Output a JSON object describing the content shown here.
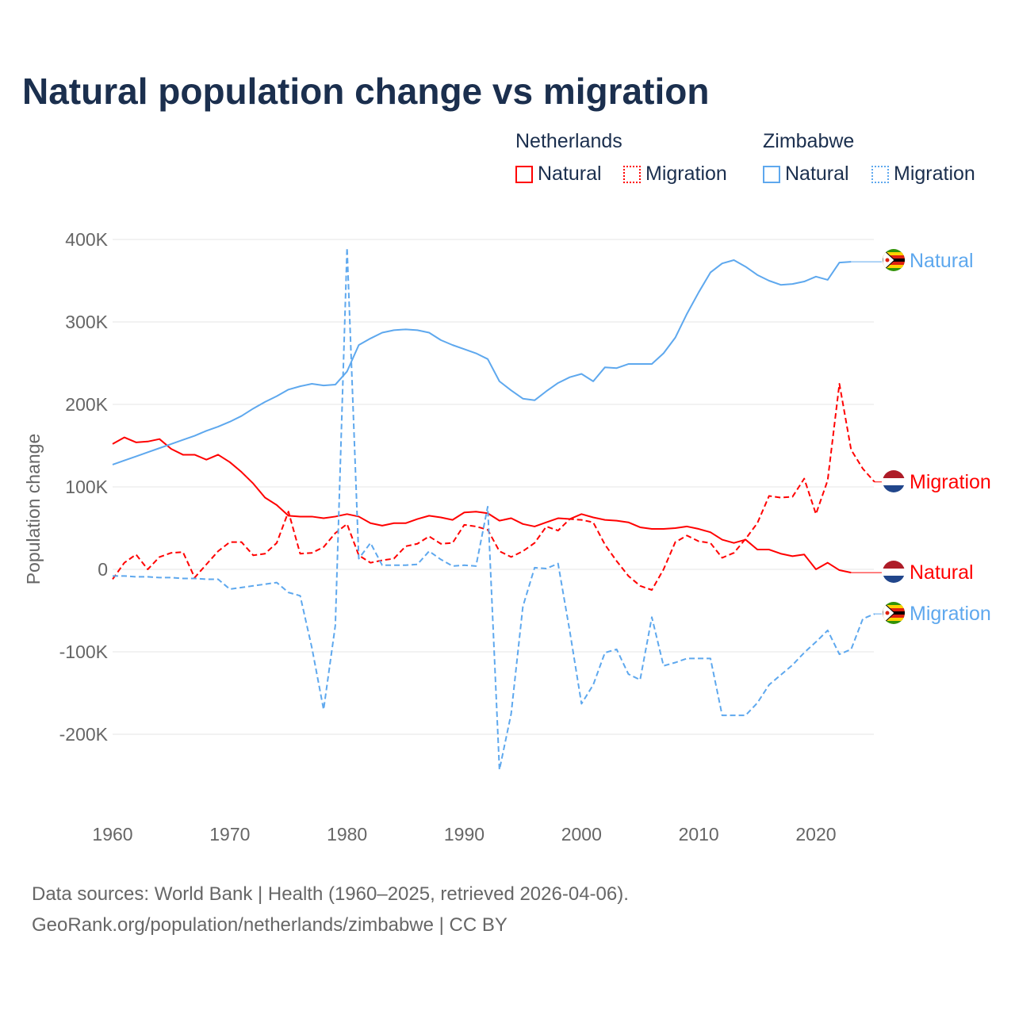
{
  "title": "Natural population change vs migration",
  "legend": {
    "groups": [
      {
        "name": "Netherlands",
        "items": [
          "Natural",
          "Migration"
        ],
        "color": "#ff0000"
      },
      {
        "name": "Zimbabwe",
        "items": [
          "Natural",
          "Migration"
        ],
        "color": "#5ea8ee"
      }
    ]
  },
  "footer": {
    "line1": "Data sources: World Bank | Health (1960–2025, retrieved 2026-04-06).",
    "line2": "GeoRank.org/population/netherlands/zimbabwe | CC BY"
  },
  "chart_data": {
    "type": "line",
    "title": "Natural population change vs migration",
    "xlabel": "",
    "ylabel": "Population change",
    "xlim": [
      1960,
      2025
    ],
    "ylim": [
      -250000,
      400000
    ],
    "x_ticks": [
      1960,
      1970,
      1980,
      1990,
      2000,
      2010,
      2020
    ],
    "x_tick_labels": [
      "1960",
      "1970",
      "1980",
      "1990",
      "2000",
      "2010",
      "2020"
    ],
    "y_ticks": [
      400000,
      300000,
      200000,
      100000,
      0,
      -100000,
      -200000
    ],
    "y_tick_labels": [
      "400K",
      "300K",
      "200K",
      "100K",
      "0",
      "-100K",
      "-200K"
    ],
    "grid": true,
    "series": [
      {
        "name": "Netherlands Natural",
        "label": "Natural",
        "color": "#ff0000",
        "dash": false,
        "start": 1960,
        "values": [
          152,
          160,
          154,
          155,
          158,
          146,
          139,
          139,
          133,
          139,
          130,
          118,
          104,
          87,
          78,
          65,
          64,
          64,
          62,
          64,
          67,
          64,
          56,
          53,
          56,
          56,
          61,
          65,
          63,
          60,
          69,
          70,
          68,
          59,
          62,
          55,
          52,
          57,
          62,
          61,
          67,
          63,
          60,
          59,
          57,
          51,
          49,
          49,
          50,
          52,
          49,
          45,
          36,
          32,
          36,
          24,
          24,
          19,
          16,
          18,
          0,
          8,
          -1,
          -4
        ]
      },
      {
        "name": "Netherlands Migration",
        "label": "Migration",
        "color": "#ff0000",
        "dash": true,
        "start": 1960,
        "values": [
          -12,
          8,
          18,
          0,
          15,
          20,
          21,
          -10,
          6,
          22,
          33,
          33,
          17,
          19,
          32,
          70,
          19,
          20,
          27,
          44,
          55,
          17,
          8,
          11,
          13,
          28,
          31,
          40,
          31,
          32,
          54,
          52,
          48,
          22,
          15,
          22,
          32,
          52,
          47,
          61,
          60,
          57,
          30,
          10,
          -8,
          -20,
          -25,
          0,
          33,
          41,
          34,
          32,
          14,
          20,
          37,
          56,
          89,
          87,
          88,
          110,
          67,
          108,
          225,
          145,
          122,
          106
        ]
      },
      {
        "name": "Zimbabwe Natural",
        "label": "Natural",
        "color": "#5ea8ee",
        "dash": false,
        "start": 1960,
        "values": [
          127,
          132,
          137,
          142,
          147,
          152,
          157,
          162,
          168,
          173,
          179,
          186,
          195,
          203,
          210,
          218,
          222,
          225,
          223,
          224,
          240,
          272,
          280,
          287,
          290,
          291,
          290,
          287,
          278,
          272,
          267,
          262,
          255,
          228,
          217,
          207,
          205,
          216,
          226,
          233,
          237,
          228,
          245,
          244,
          249,
          249,
          249,
          262,
          281,
          310,
          336,
          360,
          371,
          375,
          367,
          357,
          350,
          345,
          346,
          349,
          355,
          351,
          372,
          373
        ]
      },
      {
        "name": "Zimbabwe Migration",
        "label": "Migration",
        "color": "#5ea8ee",
        "dash": true,
        "start": 1960,
        "values": [
          -8,
          -8,
          -9,
          -9,
          -10,
          -10,
          -11,
          -11,
          -12,
          -12,
          -24,
          -22,
          -20,
          -18,
          -16,
          -28,
          -32,
          -95,
          -170,
          -68,
          390,
          13,
          32,
          5,
          5,
          5,
          6,
          22,
          12,
          4,
          5,
          4,
          76,
          -243,
          -175,
          -45,
          2,
          1,
          7,
          -75,
          -163,
          -140,
          -101,
          -97,
          -127,
          -134,
          -58,
          -117,
          -113,
          -108,
          -108,
          -108,
          -177,
          -177,
          -177,
          -162,
          -140,
          -128,
          -116,
          -101,
          -88,
          -74,
          -103,
          -97,
          -60,
          -54
        ]
      }
    ],
    "value_unit": "thousands"
  }
}
